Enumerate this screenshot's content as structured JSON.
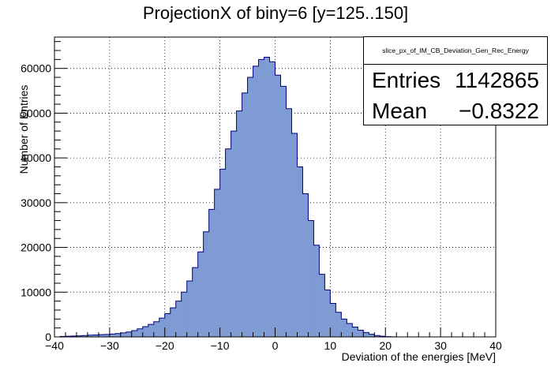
{
  "chart_data": {
    "type": "bar",
    "title": "ProjectionX of biny=6 [y=125..150]",
    "xlabel": "Deviation of the energies [MeV]",
    "ylabel": "Number of Entries",
    "xlim": [
      -40,
      40
    ],
    "ylim": [
      0,
      67000
    ],
    "bin_width": 1,
    "x_ticks": [
      "−40",
      "−30",
      "−20",
      "−10",
      "0",
      "10",
      "20",
      "30",
      "40"
    ],
    "y_ticks": [
      "0",
      "10000",
      "20000",
      "30000",
      "40000",
      "50000",
      "60000"
    ],
    "bins_start": -40,
    "values": [
      0,
      100,
      150,
      200,
      250,
      300,
      400,
      450,
      500,
      550,
      650,
      750,
      900,
      1100,
      1400,
      1800,
      2300,
      2800,
      3400,
      4200,
      5200,
      6500,
      8000,
      10000,
      12500,
      15500,
      19000,
      23500,
      28500,
      33000,
      37500,
      42000,
      46000,
      50500,
      54500,
      58000,
      60500,
      62000,
      62500,
      61500,
      58500,
      56000,
      51000,
      45500,
      38000,
      32000,
      26000,
      20500,
      14000,
      10500,
      7500,
      5500,
      4000,
      3000,
      2200,
      1500,
      1000,
      600,
      300,
      150,
      60,
      20,
      10,
      5,
      0,
      0,
      0,
      0,
      0,
      0,
      0,
      0,
      0,
      0,
      0,
      0,
      0,
      0,
      0,
      0
    ],
    "grid": true,
    "fill_color": "#7f9bd4",
    "line_color": "#00007f",
    "stats": {
      "name": "slice_px_of_IM_CB_Deviation_Gen_Rec_Energy",
      "entries_label": "Entries",
      "entries_value": "1142865",
      "mean_label": "Mean",
      "mean_value": "−0.8322"
    }
  }
}
